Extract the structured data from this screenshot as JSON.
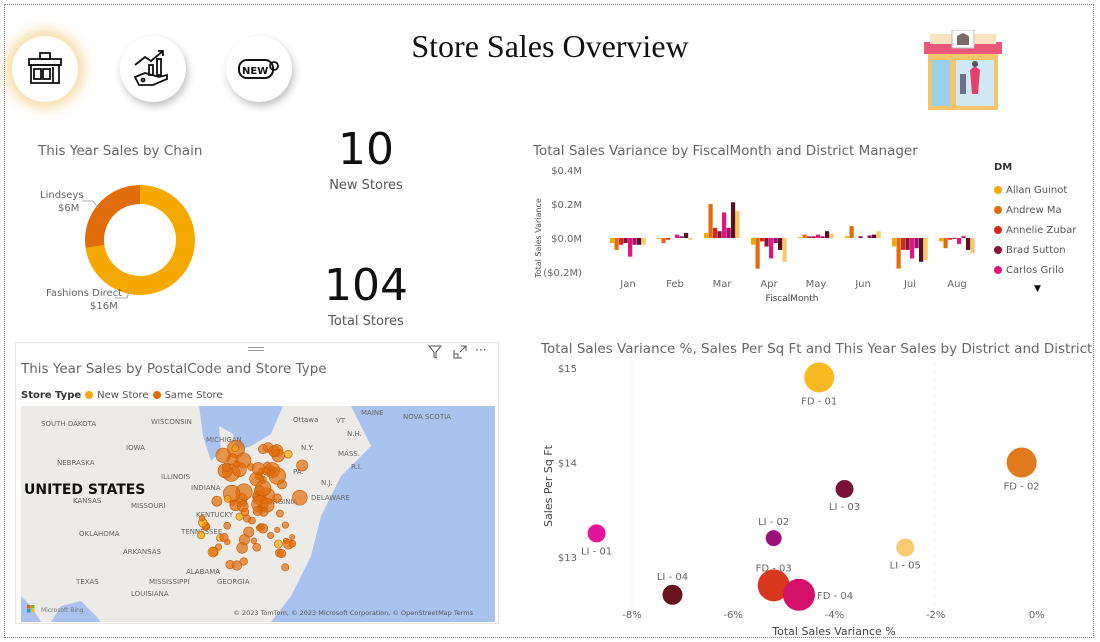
{
  "header": {
    "title": "Store Sales Overview"
  },
  "nav": [
    {
      "name": "store-nav",
      "active": true
    },
    {
      "name": "growth-nav",
      "active": false
    },
    {
      "name": "new-nav",
      "active": false
    }
  ],
  "colors": {
    "allan": "#F5A800",
    "andrew": "#E06C0A",
    "annelie": "#D6291E",
    "brad": "#8A1238",
    "carlos": "#E3157F",
    "s6": "#9B0F6E",
    "s7": "#5B0F1F",
    "s8": "#F8C96A"
  },
  "donut": {
    "title": "This Year Sales by Chain",
    "slices": [
      {
        "label": "Fashions Direct",
        "value_label": "$16M",
        "value": 16,
        "color": "#F5A800"
      },
      {
        "label": "Lindseys",
        "value_label": "$6M",
        "value": 6,
        "color": "#E06C0A"
      }
    ]
  },
  "kpis": {
    "new_stores": {
      "value": "10",
      "label": "New Stores"
    },
    "total_stores": {
      "value": "104",
      "label": "Total Stores"
    }
  },
  "map": {
    "title": "This Year Sales by PostalCode and Store Type",
    "legend_title": "Store Type",
    "legend": [
      {
        "label": "New Store",
        "color": "#F5A800"
      },
      {
        "label": "Same Store",
        "color": "#E06C0A"
      }
    ],
    "labels": [
      "SOUTH DAKOTA",
      "WISCONSIN",
      "MICHIGAN",
      "Ottawa",
      "MAINE",
      "NOVA SCOTIA",
      "VT",
      "N.H.",
      "IOWA",
      "N.Y.",
      "MASS.",
      "R.I.",
      "NEBRASKA",
      "ILLINOIS",
      "PA.",
      "UNITED STATES",
      "INDIANA",
      "N.J.",
      "KANSAS",
      "MISSOURI",
      "VIRGINIA",
      "DELAWARE",
      "KENTUCKY",
      "OKLAHOMA",
      "TENNESSEE",
      "ARKANSAS",
      "ALABAMA",
      "TEXAS",
      "MISSISSIPPI",
      "GEORGIA",
      "LOUISIANA"
    ],
    "attribution": "© 2023 TomTom, © 2023 Microsoft Corporation, © OpenStreetMap  Terms",
    "brand": "Microsoft Bing"
  },
  "chart_data": [
    {
      "type": "bar",
      "title": "Total Sales Variance by FiscalMonth and District Manager",
      "xlabel": "FiscalMonth",
      "ylabel": "Total Sales Variance",
      "categories": [
        "Jan",
        "Feb",
        "Mar",
        "Apr",
        "May",
        "Jun",
        "Jul",
        "Aug"
      ],
      "yticks": [
        "$0.4M",
        "$0.2M",
        "$0.0M",
        "($0.2M)"
      ],
      "ylim": [
        -0.2,
        0.4
      ],
      "legend_title": "DM",
      "legend_placement": "right",
      "series": [
        {
          "name": "Allan Guinot",
          "color": "#F5A800",
          "values": [
            -0.03,
            -0.005,
            0.03,
            -0.04,
            0.005,
            0.01,
            -0.05,
            -0.02
          ]
        },
        {
          "name": "Andrew Ma",
          "color": "#E06C0A",
          "values": [
            -0.07,
            -0.03,
            0.2,
            -0.18,
            0.02,
            0.07,
            -0.18,
            -0.06
          ]
        },
        {
          "name": "Annelie Zubar",
          "color": "#D6291E",
          "values": [
            -0.04,
            -0.01,
            0.06,
            -0.02,
            0.01,
            0.0,
            -0.07,
            -0.01
          ]
        },
        {
          "name": "Brad Sutton",
          "color": "#8A1238",
          "values": [
            -0.03,
            0.0,
            0.04,
            -0.05,
            0.01,
            0.01,
            -0.07,
            -0.005
          ]
        },
        {
          "name": "Carlos Grilo",
          "color": "#E3157F",
          "values": [
            -0.11,
            0.02,
            0.15,
            -0.12,
            0.02,
            0.0,
            -0.12,
            -0.035
          ]
        },
        {
          "name": "",
          "color": "#9B0F6E",
          "values": [
            -0.04,
            0.01,
            0.06,
            -0.03,
            0.01,
            0.015,
            -0.06,
            0.01
          ]
        },
        {
          "name": "",
          "color": "#5B0F1F",
          "values": [
            -0.04,
            0.03,
            0.21,
            -0.07,
            0.04,
            0.02,
            -0.14,
            -0.07
          ]
        },
        {
          "name": "",
          "color": "#F8C96A",
          "values": [
            -0.04,
            -0.01,
            0.16,
            -0.14,
            0.025,
            0.04,
            -0.13,
            -0.09
          ]
        }
      ]
    },
    {
      "type": "scatter",
      "title": "Total Sales Variance %, Sales Per Sq Ft and This Year Sales by District and District",
      "xlabel": "Total Sales Variance %",
      "ylabel": "Sales Per Sq Ft",
      "xticks": [
        "-8%",
        "-6%",
        "-4%",
        "-2%",
        "0%"
      ],
      "xtick_values": [
        -8,
        -6,
        -4,
        -2,
        0
      ],
      "yticks": [
        "$15",
        "$14",
        "$13"
      ],
      "ytick_values": [
        15,
        14,
        13
      ],
      "xlim": [
        -9.3,
        0.1
      ],
      "ylim": [
        12.45,
        15.05
      ],
      "points": [
        {
          "label": "FD - 01",
          "x": -4.3,
          "y": 14.9,
          "size": 15,
          "color": "#F8B820"
        },
        {
          "label": "FD - 02",
          "x": -0.3,
          "y": 14.0,
          "size": 15,
          "color": "#E07A1A"
        },
        {
          "label": "LI - 03",
          "x": -3.8,
          "y": 13.72,
          "size": 9,
          "color": "#7A1238"
        },
        {
          "label": "LI - 01",
          "x": -8.7,
          "y": 13.25,
          "size": 9,
          "color": "#E3149A"
        },
        {
          "label": "LI - 02",
          "x": -5.2,
          "y": 13.2,
          "size": 8,
          "color": "#9B0F78"
        },
        {
          "label": "LI - 05",
          "x": -2.6,
          "y": 13.1,
          "size": 9,
          "color": "#F9CB70"
        },
        {
          "label": "LI - 04",
          "x": -7.2,
          "y": 12.6,
          "size": 10,
          "color": "#6A121C"
        },
        {
          "label": "FD - 03",
          "x": -5.2,
          "y": 12.7,
          "size": 16,
          "color": "#D9381E"
        },
        {
          "label": "FD - 04",
          "x": -4.7,
          "y": 12.6,
          "size": 16,
          "color": "#D4106A"
        }
      ]
    }
  ]
}
